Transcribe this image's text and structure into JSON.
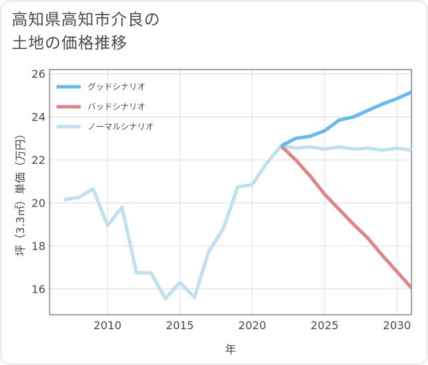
{
  "title_line1": "高知県高知市介良の",
  "title_line2": "土地の価格推移",
  "chart_data": {
    "type": "line",
    "xlabel": "年",
    "ylabel": "坪（3.3㎡）単価（万円）",
    "xlim": [
      2006.0,
      2031.0
    ],
    "ylim": [
      14.8,
      26.2
    ],
    "xticks": [
      2010,
      2015,
      2020,
      2025,
      2030
    ],
    "yticks": [
      16,
      18,
      20,
      22,
      24,
      26
    ],
    "grid": true,
    "legend_position": "top-left",
    "series": [
      {
        "name": "グッドシナリオ",
        "color": "#6ab8ec",
        "x": [
          2022,
          2023,
          2024,
          2025,
          2026,
          2027,
          2028,
          2029,
          2030,
          2031
        ],
        "y": [
          22.65,
          23.0,
          23.1,
          23.35,
          23.85,
          24.0,
          24.3,
          24.6,
          24.85,
          25.15
        ]
      },
      {
        "name": "バッドシナリオ",
        "color": "#dc868a",
        "x": [
          2022,
          2023,
          2024,
          2025,
          2026,
          2027,
          2028,
          2029,
          2030,
          2031
        ],
        "y": [
          22.65,
          22.0,
          21.25,
          20.4,
          19.7,
          19.0,
          18.35,
          17.55,
          16.8,
          16.05
        ]
      },
      {
        "name": "ノーマルシナリオ",
        "color": "#bfe0ee",
        "x": [
          2007,
          2008,
          2009,
          2010,
          2011,
          2012,
          2013,
          2014,
          2015,
          2016,
          2017,
          2018,
          2019,
          2020,
          2021,
          2022,
          2023,
          2024,
          2025,
          2026,
          2027,
          2028,
          2029,
          2030,
          2031
        ],
        "y": [
          20.15,
          20.25,
          20.65,
          18.95,
          19.8,
          16.75,
          16.75,
          15.55,
          16.3,
          15.6,
          17.75,
          18.8,
          20.75,
          20.85,
          21.85,
          22.65,
          22.55,
          22.6,
          22.5,
          22.6,
          22.5,
          22.55,
          22.45,
          22.55,
          22.45
        ]
      }
    ]
  }
}
